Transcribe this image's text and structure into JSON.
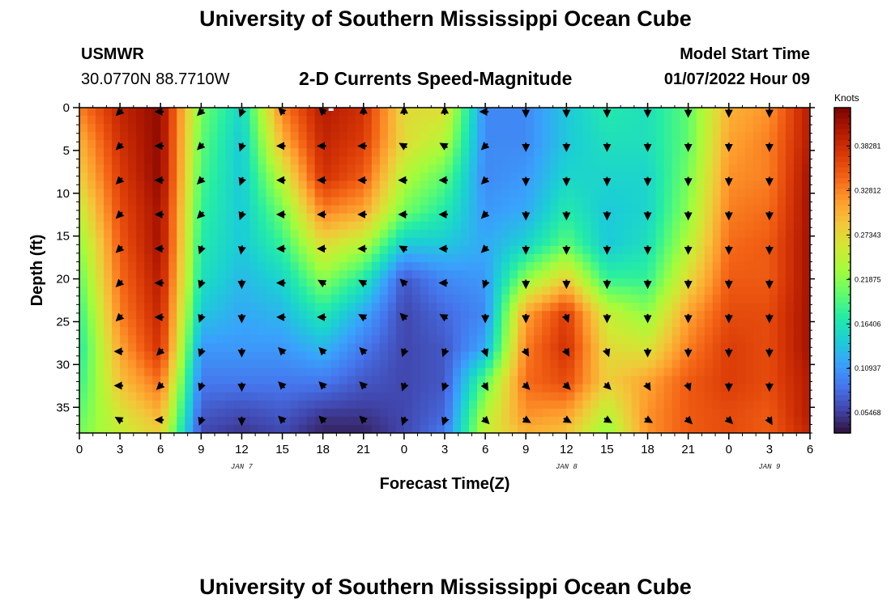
{
  "page": {
    "title": "University of Southern Mississippi Ocean Cube",
    "title_bottom": "University of Southern Mississippi Ocean Cube",
    "station_id": "USMWR",
    "station_coords": "30.0770N  88.7710W",
    "subtitle": "2-D Currents Speed-Magnitude",
    "model_start_label": "Model Start Time",
    "model_start_value": "01/07/2022 Hour 09"
  },
  "colors": {
    "arrow": "#000000",
    "colormap": [
      "#30123b",
      "#4145ab",
      "#4675ed",
      "#39a2fc",
      "#1bcfd4",
      "#24eca6",
      "#61fc6c",
      "#a4fc3b",
      "#d1e834",
      "#f3c63a",
      "#fe9b2d",
      "#f36315",
      "#d93806",
      "#b11901",
      "#7a0403"
    ]
  },
  "chart_data": {
    "type": "heatmap",
    "title": "2-D Currents Speed-Magnitude",
    "xlabel": "Forecast Time(Z)",
    "ylabel": "Depth (ft)",
    "x_unit": "hours since Jan 7 00Z",
    "xlim": [
      0,
      54
    ],
    "ylim": [
      0,
      38
    ],
    "x_ticks": [
      0,
      3,
      6,
      9,
      12,
      15,
      18,
      21,
      24,
      27,
      30,
      33,
      36,
      39,
      42,
      45,
      48,
      51,
      54
    ],
    "x_tick_labels": [
      "0",
      "3",
      "6",
      "9",
      "12",
      "15",
      "18",
      "21",
      "0",
      "3",
      "6",
      "9",
      "12",
      "15",
      "18",
      "21",
      "0",
      "3",
      "6"
    ],
    "y_ticks": [
      0,
      5,
      10,
      15,
      20,
      25,
      30,
      35
    ],
    "y_tick_labels": [
      "0",
      "5",
      "10",
      "15",
      "20",
      "25",
      "30",
      "35"
    ],
    "date_labels": [
      {
        "x": 12,
        "text": "JAN 7"
      },
      {
        "x": 36,
        "text": "JAN 8"
      },
      {
        "x": 51,
        "text": "JAN 9"
      }
    ],
    "colorbar": {
      "unit": "Knots",
      "min": 0.03,
      "max": 0.43,
      "ticks": [
        0.05468,
        0.10937,
        0.16406,
        0.21875,
        0.27343,
        0.32812,
        0.38281
      ],
      "tick_labels": [
        "0.05468",
        "0.10937",
        "0.16406",
        "0.21875",
        "0.27343",
        "0.32812",
        "0.38281"
      ]
    },
    "speed_grid": {
      "x": [
        0,
        3,
        6,
        9,
        12,
        15,
        18,
        21,
        24,
        27,
        30,
        33,
        36,
        39,
        42,
        45,
        48,
        51,
        54
      ],
      "depth": [
        0,
        4,
        8,
        12,
        16,
        20,
        24,
        28,
        32,
        36,
        38
      ],
      "values": [
        [
          0.33,
          0.39,
          0.42,
          0.21,
          0.15,
          0.33,
          0.4,
          0.38,
          0.27,
          0.27,
          0.1,
          0.1,
          0.14,
          0.17,
          0.16,
          0.2,
          0.3,
          0.32,
          0.4
        ],
        [
          0.3,
          0.38,
          0.42,
          0.2,
          0.14,
          0.3,
          0.39,
          0.37,
          0.27,
          0.24,
          0.1,
          0.1,
          0.14,
          0.16,
          0.16,
          0.2,
          0.31,
          0.33,
          0.4
        ],
        [
          0.28,
          0.37,
          0.42,
          0.19,
          0.14,
          0.25,
          0.38,
          0.35,
          0.24,
          0.2,
          0.1,
          0.11,
          0.15,
          0.15,
          0.15,
          0.21,
          0.32,
          0.33,
          0.41
        ],
        [
          0.25,
          0.36,
          0.41,
          0.18,
          0.14,
          0.21,
          0.33,
          0.31,
          0.21,
          0.17,
          0.11,
          0.12,
          0.17,
          0.14,
          0.15,
          0.22,
          0.33,
          0.34,
          0.41
        ],
        [
          0.22,
          0.35,
          0.41,
          0.17,
          0.14,
          0.18,
          0.27,
          0.24,
          0.14,
          0.14,
          0.12,
          0.15,
          0.2,
          0.14,
          0.16,
          0.24,
          0.34,
          0.35,
          0.41
        ],
        [
          0.2,
          0.34,
          0.4,
          0.16,
          0.13,
          0.15,
          0.22,
          0.17,
          0.07,
          0.1,
          0.11,
          0.22,
          0.28,
          0.18,
          0.18,
          0.27,
          0.35,
          0.35,
          0.41
        ],
        [
          0.18,
          0.33,
          0.39,
          0.14,
          0.12,
          0.13,
          0.17,
          0.12,
          0.06,
          0.08,
          0.1,
          0.31,
          0.37,
          0.25,
          0.22,
          0.31,
          0.36,
          0.36,
          0.41
        ],
        [
          0.17,
          0.31,
          0.38,
          0.11,
          0.11,
          0.11,
          0.13,
          0.09,
          0.06,
          0.07,
          0.12,
          0.33,
          0.38,
          0.27,
          0.26,
          0.33,
          0.37,
          0.36,
          0.41
        ],
        [
          0.18,
          0.29,
          0.34,
          0.09,
          0.09,
          0.09,
          0.09,
          0.07,
          0.06,
          0.07,
          0.2,
          0.34,
          0.36,
          0.28,
          0.31,
          0.35,
          0.37,
          0.36,
          0.4
        ],
        [
          0.2,
          0.26,
          0.3,
          0.07,
          0.06,
          0.07,
          0.05,
          0.05,
          0.06,
          0.08,
          0.24,
          0.32,
          0.31,
          0.24,
          0.32,
          0.35,
          0.36,
          0.35,
          0.4
        ],
        [
          0.21,
          0.25,
          0.28,
          0.06,
          0.05,
          0.06,
          0.04,
          0.04,
          0.06,
          0.09,
          0.25,
          0.3,
          0.29,
          0.22,
          0.32,
          0.35,
          0.36,
          0.35,
          0.39
        ]
      ]
    },
    "vector_field": {
      "x": [
        3,
        6,
        9,
        12,
        15,
        18,
        21,
        24,
        27,
        30,
        33,
        36,
        39,
        42,
        45,
        48,
        51
      ],
      "depth": [
        0,
        4,
        8,
        12,
        16,
        20,
        24,
        28,
        32,
        36
      ],
      "direction_deg": [
        [
          225,
          270,
          225,
          200,
          315,
          315,
          0,
          0,
          0,
          270,
          180,
          180,
          180,
          180,
          180,
          180,
          180
        ],
        [
          225,
          270,
          225,
          200,
          270,
          270,
          270,
          300,
          300,
          225,
          180,
          180,
          180,
          180,
          180,
          180,
          180
        ],
        [
          225,
          270,
          225,
          200,
          270,
          270,
          270,
          270,
          270,
          225,
          180,
          180,
          180,
          180,
          180,
          180,
          180
        ],
        [
          225,
          270,
          225,
          200,
          270,
          270,
          270,
          270,
          270,
          225,
          180,
          180,
          180,
          180,
          180,
          180,
          180
        ],
        [
          225,
          270,
          200,
          190,
          270,
          270,
          270,
          300,
          270,
          225,
          180,
          180,
          180,
          180,
          180,
          180,
          180
        ],
        [
          225,
          270,
          200,
          180,
          270,
          300,
          300,
          315,
          270,
          200,
          180,
          180,
          180,
          180,
          180,
          180,
          180
        ],
        [
          225,
          270,
          200,
          180,
          270,
          270,
          300,
          315,
          300,
          180,
          180,
          160,
          180,
          180,
          180,
          180,
          180
        ],
        [
          270,
          225,
          200,
          180,
          315,
          315,
          315,
          200,
          200,
          160,
          150,
          150,
          160,
          180,
          180,
          180,
          180
        ],
        [
          270,
          225,
          200,
          180,
          315,
          315,
          315,
          200,
          200,
          150,
          135,
          135,
          135,
          150,
          160,
          180,
          180
        ],
        [
          300,
          270,
          200,
          180,
          315,
          315,
          315,
          200,
          200,
          135,
          120,
          120,
          120,
          120,
          135,
          135,
          150
        ]
      ]
    }
  }
}
